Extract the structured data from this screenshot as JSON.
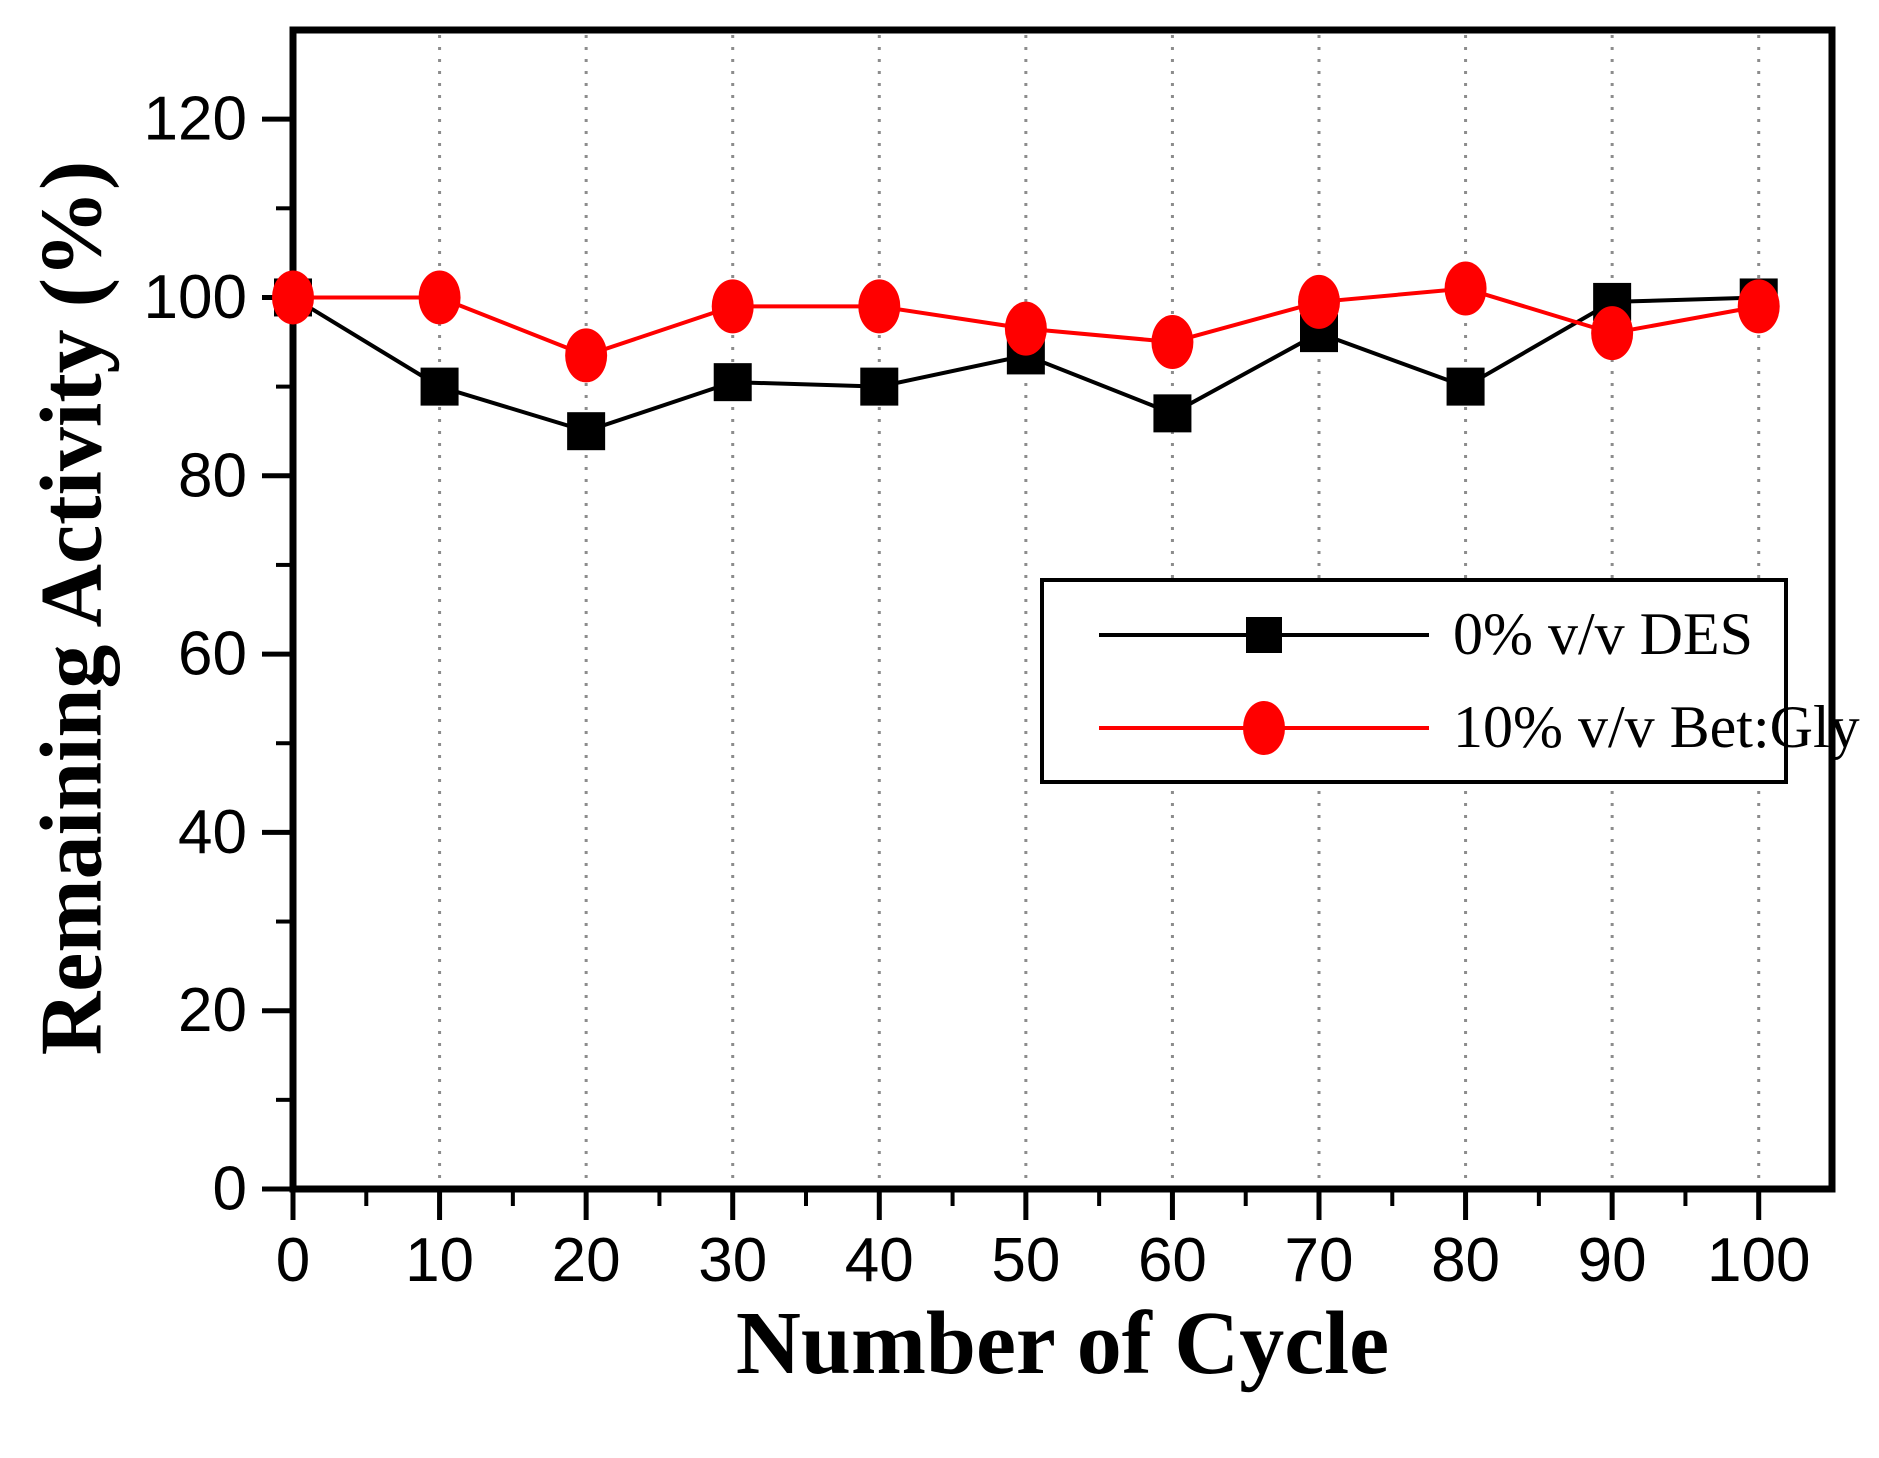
{
  "chart_data": {
    "type": "line",
    "title": "",
    "xlabel": "Number of Cycle",
    "ylabel": "Remaining Activity (%)",
    "x": [
      0,
      10,
      20,
      30,
      40,
      50,
      60,
      70,
      80,
      90,
      100
    ],
    "series": [
      {
        "name": "0% v/v DES",
        "color": "#000000",
        "marker": "square",
        "values": [
          100,
          90,
          85,
          90.5,
          90,
          93.5,
          87,
          96,
          90,
          99.5,
          100
        ]
      },
      {
        "name": "10% v/v Bet:Gly",
        "color": "#ff0000",
        "marker": "circle",
        "values": [
          100,
          100,
          93.5,
          99,
          99,
          96.5,
          95,
          99.5,
          101,
          96,
          99
        ]
      }
    ],
    "xlim": [
      0,
      105
    ],
    "ylim": [
      0,
      130
    ],
    "x_ticks": [
      0,
      10,
      20,
      30,
      40,
      50,
      60,
      70,
      80,
      90,
      100
    ],
    "x_minor_ticks": [
      5,
      15,
      25,
      35,
      45,
      55,
      65,
      75,
      85,
      95
    ],
    "y_ticks": [
      0,
      20,
      40,
      60,
      80,
      100,
      120
    ],
    "y_minor_ticks": [
      10,
      30,
      50,
      70,
      90,
      110
    ],
    "grid": {
      "vertical": true,
      "horizontal": false,
      "color": "#8c8c8c",
      "style": "dotted"
    },
    "legend": {
      "position": "right-center"
    },
    "frame_color": "#000000",
    "background_color": "#ffffff"
  }
}
